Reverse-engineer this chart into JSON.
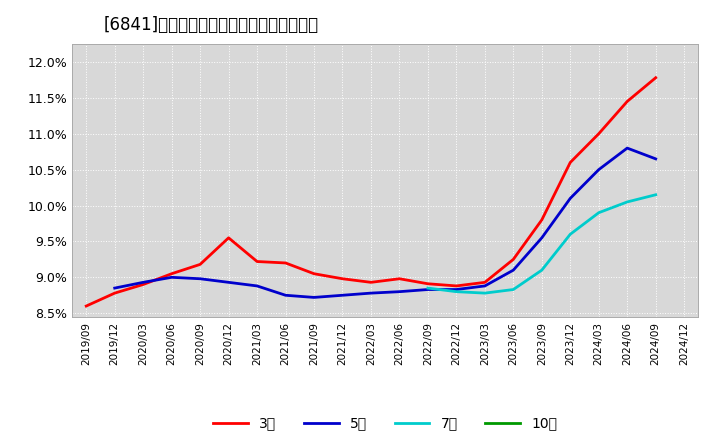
{
  "title": "[6841]　経常利益マージンの平均値の推移",
  "title_fontsize": 12,
  "background_color": "#ffffff",
  "plot_bg_color": "#d8d8d8",
  "grid_color": "#ffffff",
  "x_labels": [
    "2019/09",
    "2019/12",
    "2020/03",
    "2020/06",
    "2020/09",
    "2020/12",
    "2021/03",
    "2021/06",
    "2021/09",
    "2021/12",
    "2022/03",
    "2022/06",
    "2022/09",
    "2022/12",
    "2023/03",
    "2023/06",
    "2023/09",
    "2023/12",
    "2024/03",
    "2024/06",
    "2024/09",
    "2024/12"
  ],
  "y3": [
    0.086,
    0.0878,
    0.089,
    0.0905,
    0.0918,
    0.0955,
    0.0922,
    0.092,
    0.0905,
    0.0898,
    0.0893,
    0.0898,
    0.0891,
    0.0888,
    0.0893,
    0.0925,
    0.098,
    0.106,
    0.11,
    0.1145,
    0.1178,
    null
  ],
  "y5": [
    null,
    0.0885,
    0.0893,
    0.09,
    0.0898,
    0.0893,
    0.0888,
    0.0875,
    0.0872,
    0.0875,
    0.0878,
    0.088,
    0.0883,
    0.0883,
    0.0888,
    0.091,
    0.0955,
    0.101,
    0.105,
    0.108,
    0.1065,
    null
  ],
  "y7": [
    null,
    null,
    null,
    null,
    null,
    null,
    null,
    null,
    null,
    null,
    null,
    null,
    0.0885,
    0.088,
    0.0878,
    0.0883,
    0.091,
    0.096,
    0.099,
    0.1005,
    0.1015,
    null
  ],
  "y10": [
    null,
    null,
    null,
    null,
    null,
    null,
    null,
    null,
    null,
    null,
    null,
    null,
    null,
    null,
    null,
    null,
    null,
    null,
    null,
    null,
    null,
    null
  ],
  "colors": [
    "#ff0000",
    "#0000cc",
    "#00cccc",
    "#009900"
  ],
  "legend_labels": [
    "3年",
    "5年",
    "7年",
    "10年"
  ],
  "ylim_low": 0.0845,
  "ylim_high": 0.1225,
  "ytick_vals": [
    0.085,
    0.09,
    0.095,
    0.1,
    0.105,
    0.11,
    0.115,
    0.12
  ],
  "ytick_lbls": [
    "8.5%",
    "9.0%",
    "9.5%",
    "10.0%",
    "10.5%",
    "11.0%",
    "11.5%",
    "12.0%"
  ]
}
